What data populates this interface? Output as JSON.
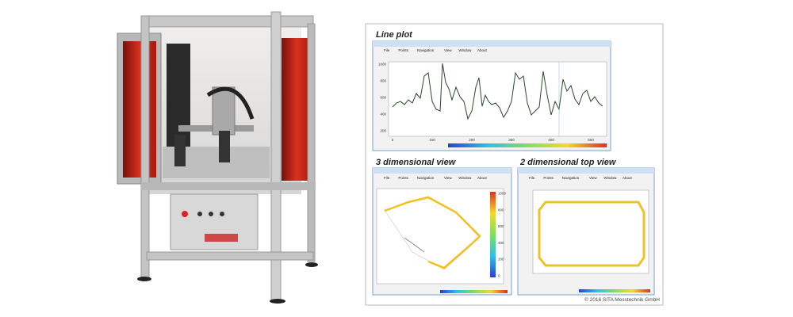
{
  "views": [
    {
      "title": "Line plot",
      "menu": [
        "File",
        "Points",
        "Navigation",
        "View",
        "Window",
        "About"
      ],
      "y_ticks": [
        "1000",
        "800",
        "600",
        "400",
        "200"
      ],
      "x_ticks": [
        "0",
        "100",
        "200",
        "300",
        "400",
        "500"
      ]
    },
    {
      "title": "3 dimensional view",
      "menu": [
        "File",
        "Points",
        "Navigation",
        "View",
        "Window",
        "About"
      ],
      "colorbar_ticks": [
        "1000",
        "800",
        "600",
        "400",
        "200",
        "0"
      ]
    },
    {
      "title": "2 dimensional top view",
      "menu": [
        "File",
        "Points",
        "Navigation",
        "View",
        "Window",
        "About"
      ]
    }
  ],
  "copyright": "© 2016 SITA Messtechnik GmbH"
}
